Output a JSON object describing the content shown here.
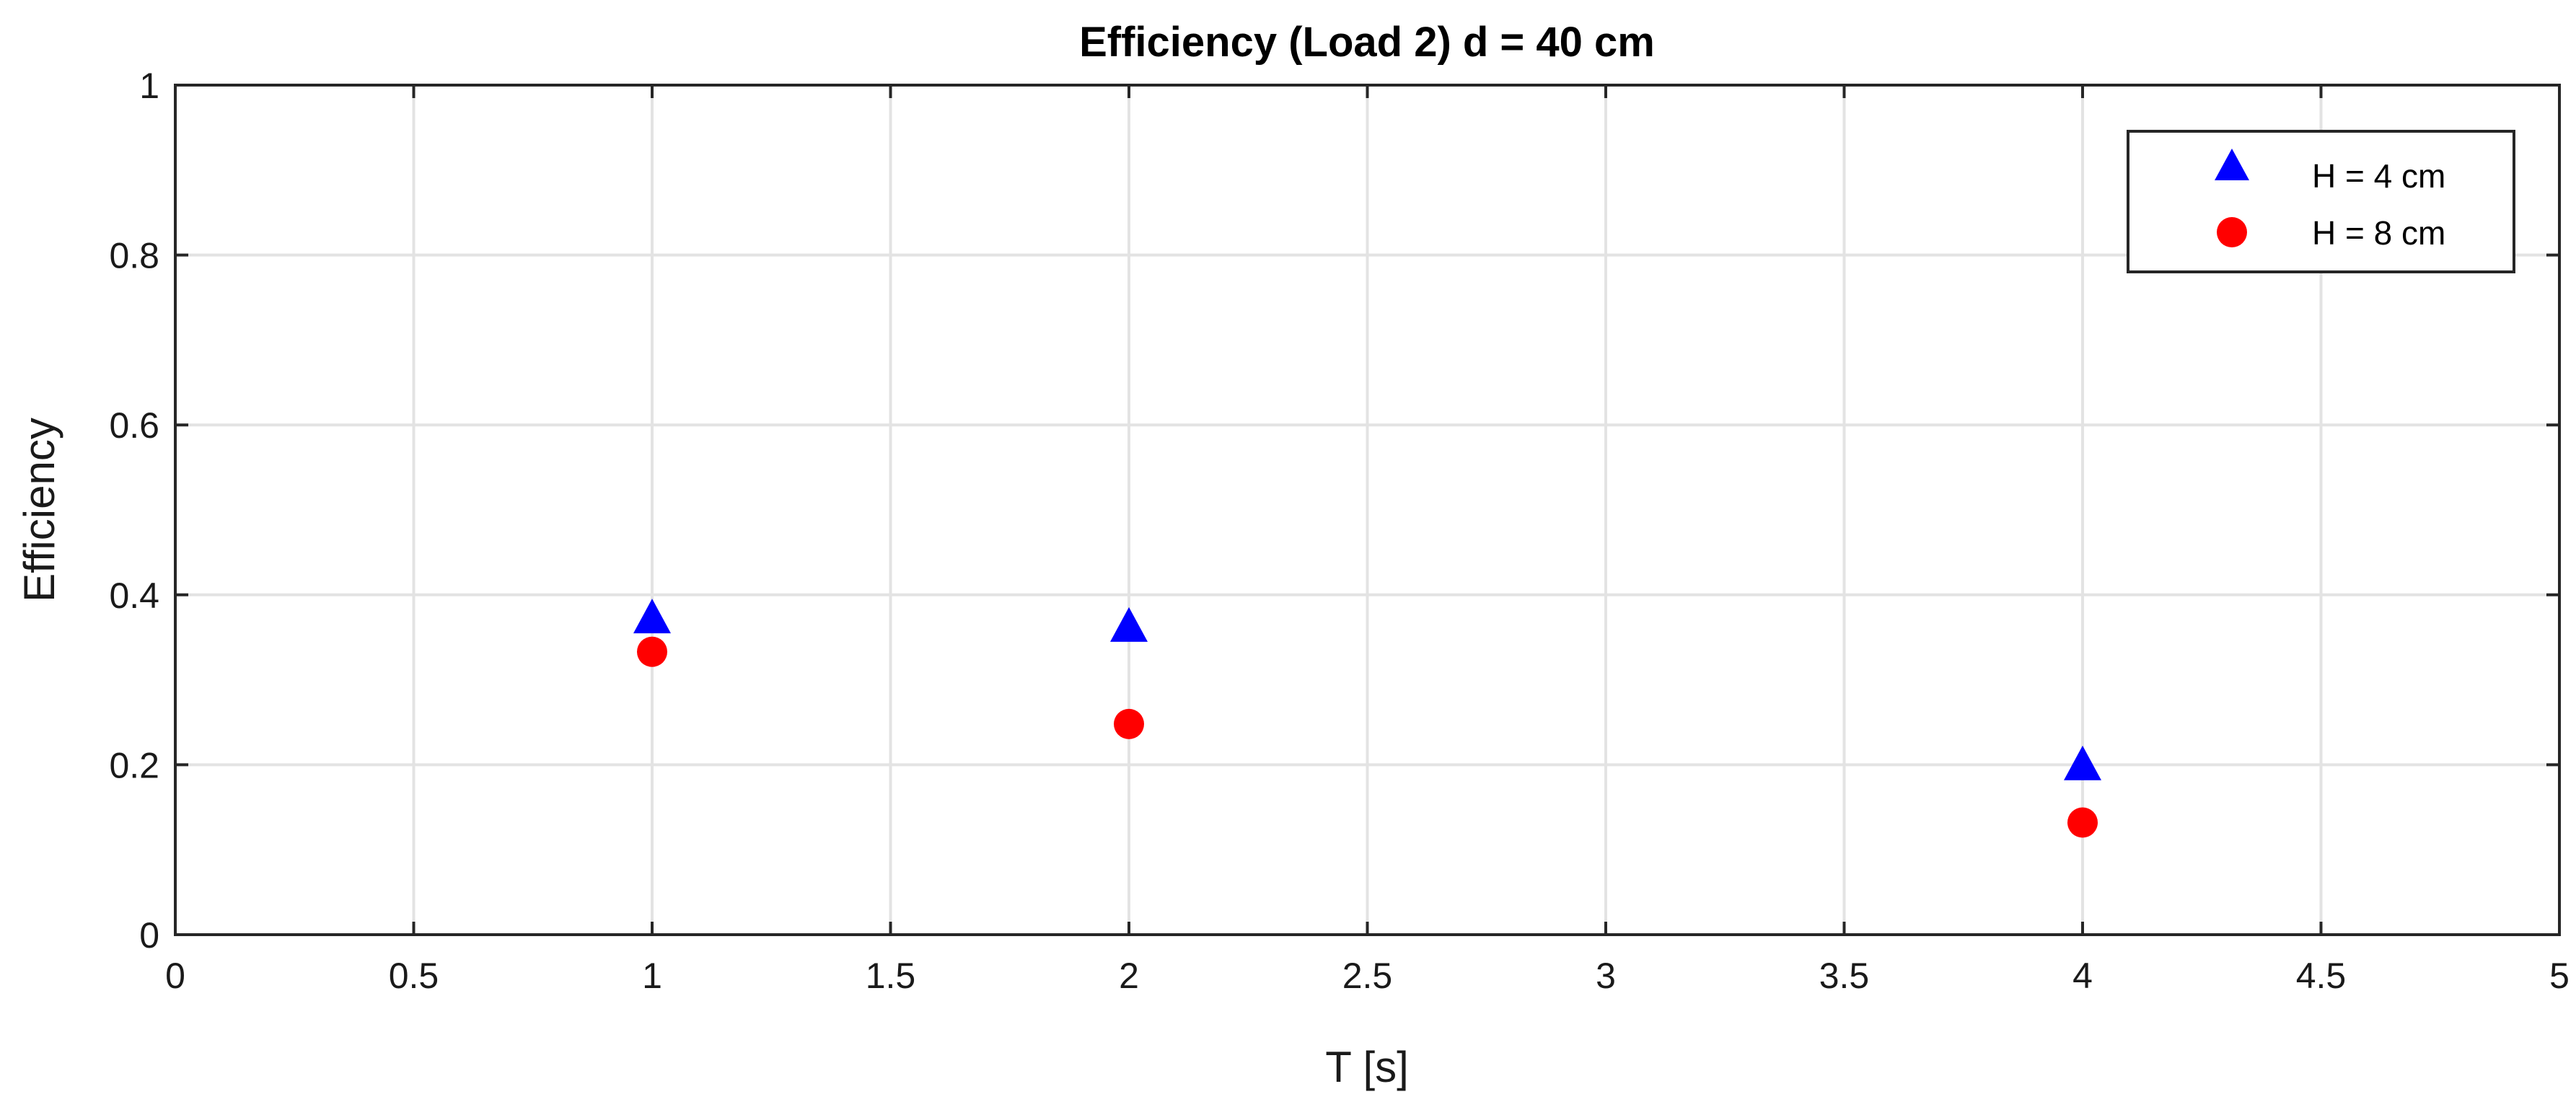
{
  "chart_data": {
    "type": "scatter",
    "title": "Efficiency (Load 2) d = 40 cm",
    "xlabel": "T [s]",
    "ylabel": "Efficiency",
    "xlim": [
      0,
      5
    ],
    "ylim": [
      0,
      1
    ],
    "xticks": [
      0,
      0.5,
      1,
      1.5,
      2,
      2.5,
      3,
      3.5,
      4,
      4.5,
      5
    ],
    "xtick_labels": [
      "0",
      "0.5",
      "1",
      "1.5",
      "2",
      "2.5",
      "3",
      "3.5",
      "4",
      "4.5",
      "5"
    ],
    "yticks": [
      0,
      0.2,
      0.4,
      0.6,
      0.8,
      1
    ],
    "ytick_labels": [
      "0",
      "0.2",
      "0.4",
      "0.6",
      "0.8",
      "1"
    ],
    "grid": true,
    "legend_position": "top-right",
    "series": [
      {
        "name": "H = 4 cm",
        "marker": "triangle",
        "color": "#0000ff",
        "x": [
          1,
          2,
          4
        ],
        "y": [
          0.37,
          0.36,
          0.197
        ]
      },
      {
        "name": "H = 8 cm",
        "marker": "circle",
        "color": "#ff0000",
        "x": [
          1,
          2,
          4
        ],
        "y": [
          0.333,
          0.248,
          0.132
        ]
      }
    ]
  }
}
